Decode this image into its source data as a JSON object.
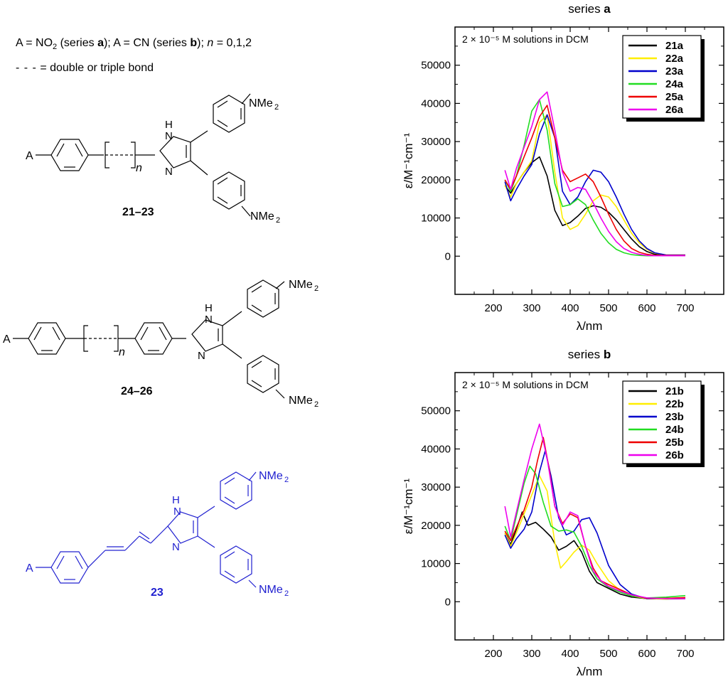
{
  "header": {
    "line1_prefix": "A = NO",
    "line1_sub": "2",
    "line1_a": " (series ",
    "line1_a_bold": "a",
    "line1_b": "); A = CN (series ",
    "line1_b_bold": "b",
    "line1_c": "); ",
    "line1_n": "n",
    "line1_d": " = 0,1,2",
    "line2_dash": "- - -",
    "line2_text": " = double or triple bond"
  },
  "structures": {
    "A_label": "A",
    "n_label": "n",
    "NH_label": "H",
    "N_label": "N",
    "NMe2_label": "NMe",
    "NMe2_sub": "2",
    "label_21_23": "21–23",
    "label_24_26": "24–26",
    "label_23": "23",
    "highlight_color": "#2020d0"
  },
  "chart_data": [
    {
      "type": "line",
      "title_prefix": "series ",
      "title_bold": "a",
      "annotation": "2 × 10⁻⁵ M solutions in DCM",
      "xlabel": "λ/nm",
      "ylabel": "ε/M⁻¹cm⁻¹",
      "xlim": [
        100,
        800
      ],
      "ylim": [
        -10000,
        60000
      ],
      "xticks": [
        200,
        300,
        400,
        500,
        600,
        700
      ],
      "yticks": [
        0,
        10000,
        20000,
        30000,
        40000,
        50000
      ],
      "series": [
        {
          "name": "21a",
          "color": "#000000",
          "x": [
            230,
            245,
            260,
            280,
            300,
            320,
            340,
            360,
            380,
            400,
            420,
            440,
            460,
            480,
            500,
            520,
            540,
            560,
            580,
            600,
            620,
            650,
            700
          ],
          "y": [
            18500,
            16500,
            19000,
            22000,
            24500,
            26000,
            21000,
            12000,
            8000,
            8800,
            10500,
            12500,
            13200,
            12800,
            11500,
            9500,
            7000,
            4500,
            2500,
            1200,
            500,
            200,
            200
          ]
        },
        {
          "name": "22a",
          "color": "#ffee00",
          "x": [
            230,
            245,
            260,
            280,
            300,
            320,
            340,
            360,
            380,
            400,
            420,
            440,
            460,
            480,
            500,
            520,
            540,
            560,
            580,
            600,
            620,
            650,
            700
          ],
          "y": [
            18500,
            15500,
            19000,
            22000,
            25000,
            35000,
            37000,
            22000,
            10000,
            7000,
            8000,
            11000,
            14500,
            16000,
            15500,
            13000,
            9500,
            6000,
            3500,
            1800,
            800,
            300,
            200
          ]
        },
        {
          "name": "23a",
          "color": "#0000cc",
          "x": [
            230,
            245,
            260,
            280,
            300,
            320,
            340,
            360,
            380,
            400,
            420,
            440,
            460,
            480,
            500,
            520,
            540,
            560,
            580,
            600,
            620,
            650,
            700
          ],
          "y": [
            19500,
            14500,
            17500,
            21000,
            24000,
            32000,
            37000,
            31000,
            17000,
            13500,
            15500,
            19500,
            22500,
            22000,
            19500,
            15500,
            11000,
            7000,
            4000,
            2000,
            900,
            300,
            300
          ]
        },
        {
          "name": "24a",
          "color": "#22dd22",
          "x": [
            230,
            245,
            260,
            280,
            300,
            320,
            340,
            360,
            380,
            400,
            420,
            440,
            460,
            480,
            500,
            520,
            540,
            560,
            580,
            600,
            620,
            650,
            700
          ],
          "y": [
            20000,
            17000,
            21000,
            29000,
            38000,
            41000,
            33000,
            19000,
            13000,
            13500,
            15000,
            13500,
            9500,
            6000,
            3500,
            1800,
            900,
            400,
            200,
            100,
            100,
            100,
            100
          ]
        },
        {
          "name": "25a",
          "color": "#ee0000",
          "x": [
            230,
            245,
            260,
            280,
            300,
            320,
            340,
            360,
            380,
            400,
            420,
            440,
            460,
            480,
            500,
            520,
            540,
            560,
            580,
            600,
            620,
            650,
            700
          ],
          "y": [
            20000,
            17500,
            21000,
            26000,
            31000,
            36500,
            39500,
            31000,
            22500,
            19500,
            20500,
            21500,
            19500,
            15500,
            11000,
            7000,
            4000,
            2000,
            1000,
            500,
            200,
            200,
            200
          ]
        },
        {
          "name": "26a",
          "color": "#ee00ee",
          "x": [
            230,
            245,
            260,
            280,
            300,
            320,
            340,
            360,
            380,
            400,
            420,
            440,
            460,
            480,
            500,
            520,
            540,
            560,
            580,
            600,
            620,
            650,
            700
          ],
          "y": [
            22500,
            17500,
            23000,
            28500,
            34000,
            41000,
            43000,
            33000,
            22000,
            17000,
            18000,
            17500,
            14000,
            10000,
            6500,
            3800,
            2000,
            1000,
            500,
            200,
            100,
            100,
            100
          ]
        }
      ],
      "legend_entries": [
        "21a",
        "22a",
        "23a",
        "24a",
        "25a",
        "26a"
      ]
    },
    {
      "type": "line",
      "title_prefix": "series ",
      "title_bold": "b",
      "annotation": "2 × 10⁻⁵ M solutions in DCM",
      "xlabel": "λ/nm",
      "ylabel": "ε/M⁻¹cm⁻¹",
      "xlim": [
        100,
        800
      ],
      "ylim": [
        -10000,
        60000
      ],
      "xticks": [
        200,
        300,
        400,
        500,
        600,
        700
      ],
      "yticks": [
        0,
        10000,
        20000,
        30000,
        40000,
        50000
      ],
      "series": [
        {
          "name": "21b",
          "color": "#000000",
          "x": [
            230,
            245,
            260,
            275,
            290,
            310,
            330,
            350,
            370,
            390,
            410,
            430,
            450,
            470,
            500,
            530,
            560,
            600,
            650,
            700
          ],
          "y": [
            18000,
            15000,
            19000,
            23500,
            20000,
            20800,
            19000,
            17000,
            13500,
            14500,
            16000,
            13000,
            8000,
            5000,
            3500,
            2000,
            1200,
            800,
            700,
            800
          ]
        },
        {
          "name": "22b",
          "color": "#ffee00",
          "x": [
            230,
            245,
            260,
            280,
            300,
            320,
            340,
            360,
            375,
            390,
            410,
            430,
            450,
            470,
            500,
            530,
            560,
            600,
            650,
            700
          ],
          "y": [
            18000,
            14500,
            18000,
            23000,
            28000,
            33000,
            29000,
            15500,
            8800,
            10500,
            13000,
            14800,
            13500,
            10000,
            5500,
            3000,
            1500,
            800,
            700,
            1000
          ]
        },
        {
          "name": "23b",
          "color": "#0000cc",
          "x": [
            230,
            245,
            260,
            280,
            300,
            320,
            335,
            350,
            370,
            390,
            410,
            430,
            450,
            470,
            500,
            530,
            560,
            600,
            650,
            700
          ],
          "y": [
            17500,
            14000,
            16500,
            19000,
            23500,
            34000,
            39500,
            33000,
            22000,
            17500,
            18500,
            21500,
            22000,
            18000,
            9500,
            4500,
            2000,
            800,
            900,
            1000
          ]
        },
        {
          "name": "24b",
          "color": "#22dd22",
          "x": [
            230,
            245,
            260,
            280,
            295,
            310,
            330,
            350,
            370,
            390,
            410,
            430,
            450,
            470,
            500,
            530,
            560,
            600,
            650,
            700
          ],
          "y": [
            19800,
            16000,
            22500,
            31000,
            35500,
            33500,
            26000,
            19800,
            18500,
            18800,
            18200,
            14500,
            9500,
            6000,
            3800,
            2500,
            1500,
            1000,
            1200,
            1600
          ]
        },
        {
          "name": "25b",
          "color": "#ee0000",
          "x": [
            230,
            245,
            260,
            280,
            300,
            315,
            330,
            345,
            360,
            380,
            400,
            420,
            440,
            460,
            480,
            500,
            530,
            560,
            600,
            650,
            700
          ],
          "y": [
            18500,
            16000,
            19500,
            24000,
            30000,
            37000,
            43000,
            35000,
            25000,
            20500,
            23000,
            22000,
            14500,
            8800,
            5500,
            4500,
            3200,
            1800,
            900,
            900,
            1100
          ]
        },
        {
          "name": "26b",
          "color": "#ee00ee",
          "x": [
            230,
            245,
            260,
            280,
            300,
            320,
            340,
            360,
            380,
            400,
            420,
            440,
            460,
            480,
            500,
            530,
            560,
            600,
            650,
            700
          ],
          "y": [
            25000,
            17000,
            23500,
            32000,
            40000,
            46500,
            37500,
            25000,
            20000,
            23500,
            22500,
            14500,
            8000,
            5500,
            4000,
            2800,
            1800,
            1000,
            800,
            800
          ]
        }
      ],
      "legend_entries": [
        "21b",
        "22b",
        "23b",
        "24b",
        "25b",
        "26b"
      ]
    }
  ]
}
